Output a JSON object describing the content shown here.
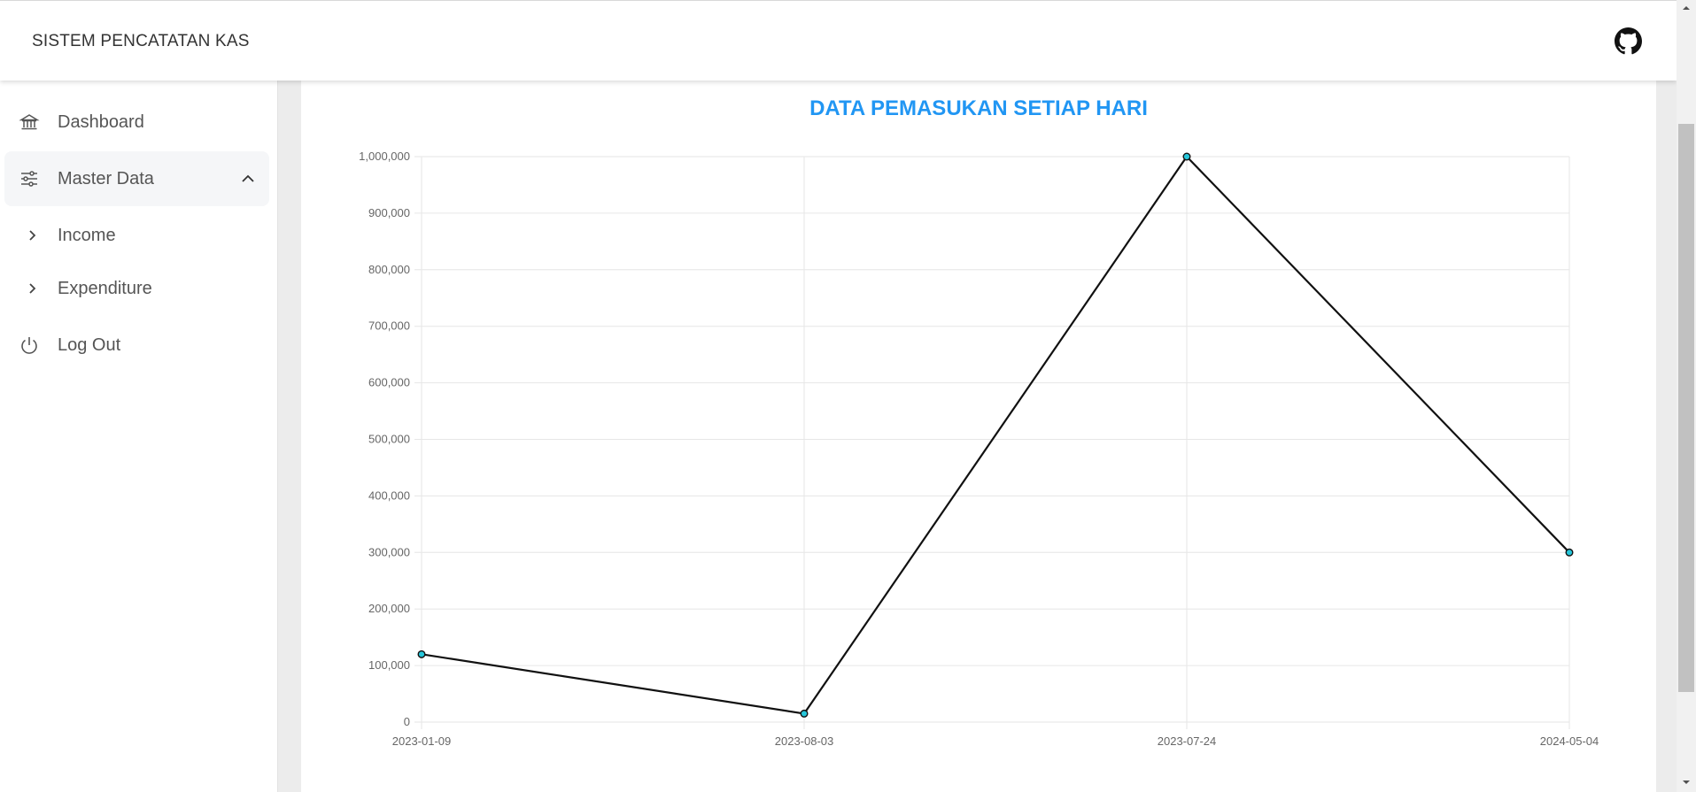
{
  "app": {
    "title": "SISTEM PENCATATAN KAS"
  },
  "header": {
    "github_icon": "github-icon"
  },
  "sidebar": {
    "items": [
      {
        "label": "Dashboard",
        "icon": "bank-icon"
      },
      {
        "label": "Master Data",
        "icon": "sliders-icon",
        "expanded": true
      },
      {
        "label": "Income",
        "icon": "chevron-right-icon"
      },
      {
        "label": "Expenditure",
        "icon": "chevron-right-icon"
      },
      {
        "label": "Log Out",
        "icon": "power-icon"
      }
    ]
  },
  "chart_data": {
    "type": "line",
    "title": "DATA PEMASUKAN SETIAP HARI",
    "categories": [
      "2023-01-09",
      "2023-08-03",
      "2023-07-24",
      "2024-05-04"
    ],
    "series": [
      {
        "values": [
          120000,
          15000,
          1000000,
          300000
        ]
      }
    ],
    "yticks": [
      "0",
      "100,000",
      "200,000",
      "300,000",
      "400,000",
      "500,000",
      "600,000",
      "700,000",
      "800,000",
      "900,000",
      "1,000,000"
    ],
    "ylim": [
      0,
      1000000
    ],
    "grid": true,
    "colors": {
      "title": "#2196f3",
      "line": "#111111",
      "point": "#26c6da",
      "grid": "#e6e6e6"
    }
  }
}
